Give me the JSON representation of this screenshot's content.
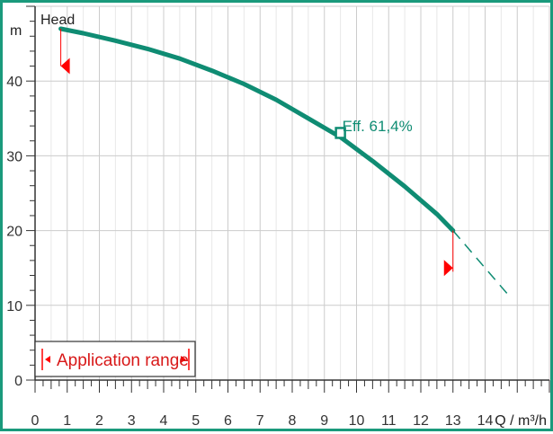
{
  "colors": {
    "frame": "#1a9a7c",
    "curve": "#0f8c73",
    "marker": "#ff0000",
    "range_text": "#d81818",
    "grid": "#cccccc",
    "grid_light": "#e8e8e8",
    "axis": "#333333"
  },
  "chart_data": {
    "type": "line",
    "title": "",
    "ylabel": "m",
    "xlabel": "Q / m³/h",
    "series_label": "Head",
    "xlim": [
      0,
      16
    ],
    "ylim": [
      0,
      50
    ],
    "x_ticks": [
      "0",
      "1",
      "2",
      "3",
      "4",
      "5",
      "6",
      "7",
      "8",
      "9",
      "10",
      "11",
      "12",
      "13",
      "14"
    ],
    "y_ticks": [
      "0",
      "10",
      "20",
      "30",
      "40"
    ],
    "grid": true,
    "series": [
      {
        "style": "solid",
        "x": [
          0.8,
          1.5,
          2.5,
          3.5,
          4.5,
          5.5,
          6.5,
          7.5,
          8.5,
          9.5,
          10.5,
          11.5,
          12.5,
          13.0
        ],
        "y": [
          47.0,
          46.4,
          45.4,
          44.3,
          43.0,
          41.4,
          39.6,
          37.5,
          35.0,
          32.5,
          29.3,
          25.9,
          22.2,
          20.0
        ]
      },
      {
        "style": "dashed",
        "x": [
          13.0,
          13.6,
          14.2,
          14.8
        ],
        "y": [
          20.0,
          17.0,
          14.0,
          11.0
        ]
      }
    ],
    "annotations": {
      "efficiency_label": "Eff.  61,4%",
      "efficiency_point": {
        "x": 9.5,
        "y": 33.0
      },
      "application_range_label": "Application range",
      "application_range": [
        0.8,
        13.0
      ]
    }
  }
}
